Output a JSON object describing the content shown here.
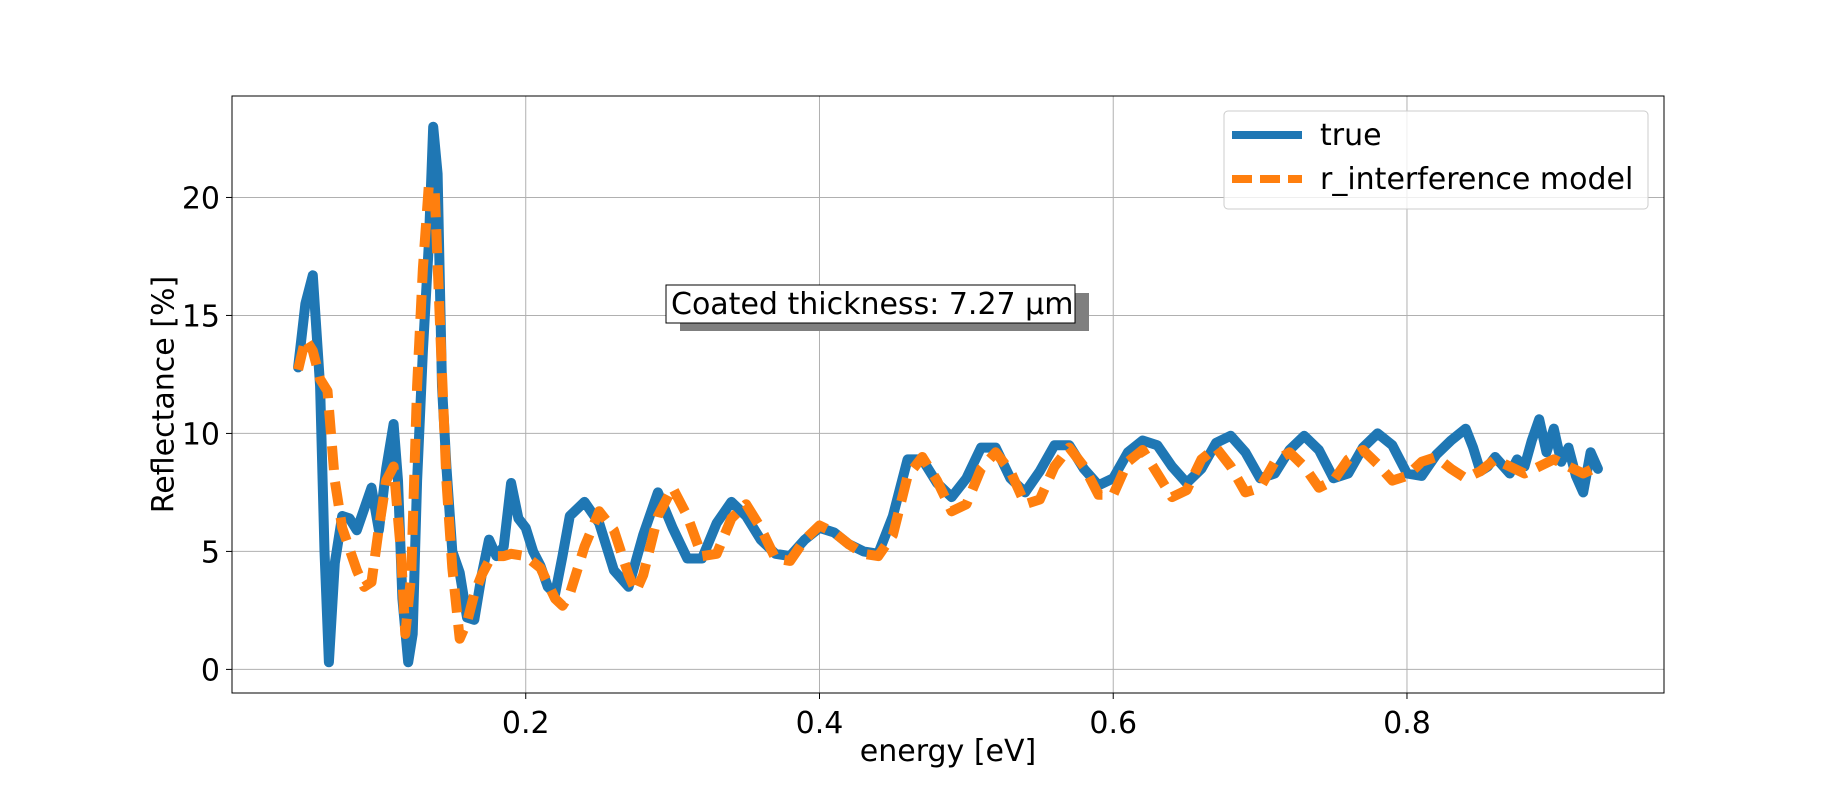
{
  "chart_data": {
    "type": "line",
    "title": "",
    "xlabel": "energy [eV]",
    "ylabel": "Reflectance [%]",
    "xlim": [
      0.0,
      0.975
    ],
    "ylim": [
      -1.0,
      24.3
    ],
    "xticks": [
      0.2,
      0.4,
      0.6,
      0.8
    ],
    "xtick_labels": [
      "0.2",
      "0.4",
      "0.6",
      "0.8"
    ],
    "yticks": [
      0,
      5,
      10,
      15,
      20
    ],
    "ytick_labels": [
      "0",
      "5",
      "10",
      "15",
      "20"
    ],
    "grid": true,
    "legend_position": "top-right",
    "annotation": {
      "text": "Coated thickness: 7.27 μm"
    },
    "series": [
      {
        "name": "true",
        "color": "#1f77b4",
        "style": "solid",
        "x": [
          0.045,
          0.05,
          0.055,
          0.06,
          0.063,
          0.066,
          0.07,
          0.075,
          0.08,
          0.085,
          0.09,
          0.095,
          0.1,
          0.105,
          0.11,
          0.113,
          0.116,
          0.12,
          0.123,
          0.126,
          0.13,
          0.134,
          0.137,
          0.14,
          0.143,
          0.146,
          0.15,
          0.155,
          0.16,
          0.165,
          0.17,
          0.175,
          0.18,
          0.185,
          0.19,
          0.195,
          0.2,
          0.205,
          0.21,
          0.215,
          0.22,
          0.225,
          0.23,
          0.24,
          0.25,
          0.26,
          0.27,
          0.28,
          0.29,
          0.3,
          0.31,
          0.32,
          0.33,
          0.34,
          0.35,
          0.36,
          0.37,
          0.38,
          0.39,
          0.4,
          0.41,
          0.42,
          0.43,
          0.44,
          0.45,
          0.46,
          0.47,
          0.48,
          0.49,
          0.5,
          0.51,
          0.52,
          0.53,
          0.54,
          0.55,
          0.56,
          0.57,
          0.58,
          0.59,
          0.6,
          0.61,
          0.62,
          0.63,
          0.64,
          0.65,
          0.66,
          0.67,
          0.68,
          0.69,
          0.7,
          0.71,
          0.72,
          0.73,
          0.74,
          0.75,
          0.76,
          0.77,
          0.78,
          0.79,
          0.8,
          0.81,
          0.82,
          0.83,
          0.84,
          0.845,
          0.85,
          0.855,
          0.86,
          0.87,
          0.875,
          0.88,
          0.885,
          0.89,
          0.895,
          0.9,
          0.905,
          0.91,
          0.915,
          0.92,
          0.925,
          0.93
        ],
        "y": [
          12.8,
          15.5,
          16.7,
          12.0,
          5.0,
          0.3,
          4.5,
          6.5,
          6.4,
          5.9,
          6.8,
          7.7,
          5.9,
          8.5,
          10.4,
          8.0,
          3.0,
          0.3,
          1.5,
          8.0,
          13.5,
          18.0,
          23.0,
          21.0,
          12.0,
          8.6,
          5.0,
          4.1,
          2.2,
          2.1,
          4.0,
          5.5,
          4.8,
          5.2,
          7.9,
          6.4,
          6.0,
          5.0,
          4.4,
          3.5,
          3.2,
          4.8,
          6.5,
          7.1,
          6.2,
          4.2,
          3.5,
          5.7,
          7.5,
          6.0,
          4.7,
          4.7,
          6.2,
          7.1,
          6.5,
          5.5,
          4.9,
          4.8,
          5.5,
          6.0,
          5.8,
          5.3,
          5.0,
          4.9,
          6.5,
          8.9,
          8.9,
          7.9,
          7.3,
          8.1,
          9.4,
          9.4,
          8.1,
          7.5,
          8.4,
          9.5,
          9.5,
          8.5,
          7.8,
          8.1,
          9.2,
          9.7,
          9.5,
          8.6,
          7.9,
          8.5,
          9.6,
          9.9,
          9.2,
          8.1,
          8.3,
          9.3,
          9.9,
          9.3,
          8.1,
          8.3,
          9.4,
          10.0,
          9.5,
          8.3,
          8.2,
          9.1,
          9.7,
          10.2,
          9.4,
          8.4,
          8.6,
          9.0,
          8.3,
          8.9,
          8.6,
          9.7,
          10.6,
          9.2,
          10.2,
          8.8,
          9.4,
          8.2,
          7.5,
          9.2,
          8.5
        ]
      },
      {
        "name": "r_interference model",
        "color": "#ff7f0e",
        "style": "dashed",
        "x": [
          0.045,
          0.05,
          0.055,
          0.06,
          0.065,
          0.07,
          0.075,
          0.08,
          0.085,
          0.09,
          0.095,
          0.1,
          0.105,
          0.11,
          0.115,
          0.118,
          0.122,
          0.126,
          0.13,
          0.134,
          0.138,
          0.142,
          0.146,
          0.15,
          0.155,
          0.16,
          0.165,
          0.17,
          0.175,
          0.18,
          0.185,
          0.19,
          0.2,
          0.21,
          0.22,
          0.225,
          0.23,
          0.24,
          0.25,
          0.26,
          0.27,
          0.275,
          0.28,
          0.29,
          0.3,
          0.31,
          0.32,
          0.33,
          0.34,
          0.35,
          0.36,
          0.37,
          0.38,
          0.39,
          0.4,
          0.41,
          0.42,
          0.43,
          0.44,
          0.45,
          0.46,
          0.47,
          0.48,
          0.49,
          0.5,
          0.51,
          0.52,
          0.53,
          0.54,
          0.55,
          0.56,
          0.57,
          0.58,
          0.59,
          0.6,
          0.61,
          0.62,
          0.63,
          0.64,
          0.65,
          0.66,
          0.67,
          0.68,
          0.69,
          0.7,
          0.71,
          0.72,
          0.73,
          0.74,
          0.75,
          0.76,
          0.77,
          0.78,
          0.79,
          0.8,
          0.81,
          0.82,
          0.83,
          0.84,
          0.85,
          0.86,
          0.87,
          0.88,
          0.89,
          0.9,
          0.91,
          0.92,
          0.93
        ],
        "y": [
          12.7,
          14.0,
          13.5,
          12.3,
          11.8,
          8.0,
          6.0,
          5.1,
          4.2,
          3.5,
          3.7,
          6.0,
          8.0,
          8.6,
          5.0,
          1.5,
          4.0,
          12.0,
          17.0,
          20.5,
          20.3,
          14.0,
          8.0,
          4.3,
          1.3,
          2.0,
          3.2,
          4.0,
          4.6,
          4.8,
          4.8,
          4.9,
          4.8,
          4.3,
          3.0,
          2.7,
          3.2,
          5.2,
          6.7,
          5.9,
          4.0,
          3.3,
          4.0,
          6.5,
          7.7,
          6.5,
          4.8,
          4.9,
          6.4,
          7.0,
          6.0,
          4.7,
          4.6,
          5.5,
          6.1,
          5.8,
          5.3,
          4.9,
          4.8,
          5.7,
          8.2,
          9.0,
          8.0,
          6.7,
          7.0,
          8.5,
          9.2,
          8.4,
          7.0,
          7.2,
          8.6,
          9.4,
          8.6,
          7.4,
          7.4,
          8.8,
          9.3,
          8.3,
          7.3,
          7.6,
          8.9,
          9.4,
          8.6,
          7.5,
          7.7,
          8.8,
          9.2,
          8.6,
          7.7,
          8.0,
          8.9,
          9.3,
          8.7,
          8.0,
          8.2,
          8.8,
          9.0,
          8.5,
          8.1,
          8.4,
          8.9,
          8.6,
          8.3,
          8.6,
          8.9,
          8.6,
          8.3,
          8.6
        ]
      }
    ]
  }
}
